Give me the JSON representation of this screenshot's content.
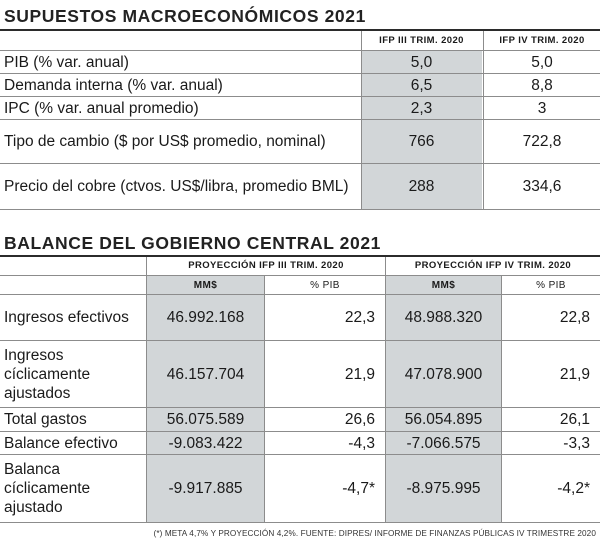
{
  "macro": {
    "title": "SUPUESTOS MACROECONÓMICOS 2021",
    "col1": "IFP III TRIM. 2020",
    "col2": "IFP IV TRIM. 2020",
    "rows": [
      {
        "label": "PIB (% var. anual)",
        "v1": "5,0",
        "v2": "5,0"
      },
      {
        "label": "Demanda interna (% var. anual)",
        "v1": "6,5",
        "v2": "8,8"
      },
      {
        "label": "IPC (% var. anual promedio)",
        "v1": "2,3",
        "v2": "3"
      },
      {
        "label": "Tipo de cambio ($ por US$ promedio, nominal)",
        "v1": "766",
        "v2": "722,8"
      },
      {
        "label": "Precio del cobre (ctvos. US$/libra, promedio BML)",
        "v1": "288",
        "v2": "334,6"
      }
    ]
  },
  "balance": {
    "title": "BALANCE DEL GOBIERNO CENTRAL 2021",
    "group1": "PROYECCIÓN IFP III TRIM. 2020",
    "group2": "PROYECCIÓN IFP IV TRIM. 2020",
    "sub_mm": "MM$",
    "sub_pib": "% PIB",
    "rows": [
      {
        "label": "Ingresos efectivos",
        "a": "46.992.168",
        "b": "22,3",
        "c": "48.988.320",
        "d": "22,8"
      },
      {
        "label": "Ingresos cíclicamente ajustados",
        "a": "46.157.704",
        "b": "21,9",
        "c": "47.078.900",
        "d": "21,9"
      },
      {
        "label": "Total gastos",
        "a": "56.075.589",
        "b": "26,6",
        "c": "56.054.895",
        "d": "26,1"
      },
      {
        "label": "Balance efectivo",
        "a": "-9.083.422",
        "b": "-4,3",
        "c": "-7.066.575",
        "d": "-3,3"
      },
      {
        "label": "Balanca cíclicamente ajustado",
        "a": "-9.917.885",
        "b": "-4,7*",
        "c": "-8.975.995",
        "d": "-4,2*"
      }
    ]
  },
  "footnote": "(*) META 4,7% Y PROYECCIÓN 4,2%. FUENTE: DIPRES/ INFORME DE FINANZAS PÚBLICAS IV TRIMESTRE 2020"
}
